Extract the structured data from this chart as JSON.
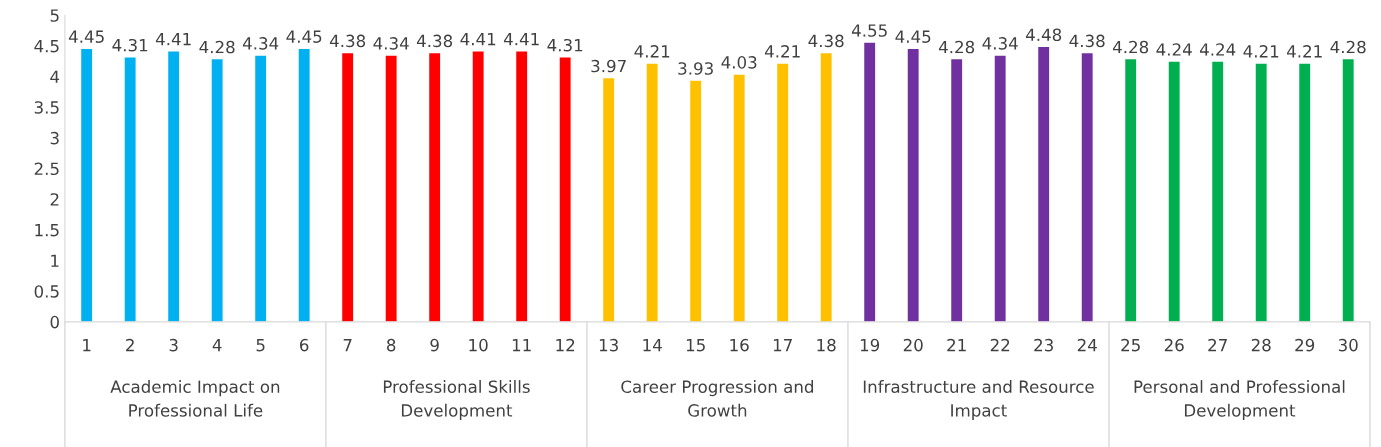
{
  "chart_data": {
    "type": "bar",
    "categories": [
      "1",
      "2",
      "3",
      "4",
      "5",
      "6",
      "7",
      "8",
      "9",
      "10",
      "11",
      "12",
      "13",
      "14",
      "15",
      "16",
      "17",
      "18",
      "19",
      "20",
      "21",
      "22",
      "23",
      "24",
      "25",
      "26",
      "27",
      "28",
      "29",
      "30"
    ],
    "values": [
      4.45,
      4.31,
      4.41,
      4.28,
      4.34,
      4.45,
      4.38,
      4.34,
      4.38,
      4.41,
      4.41,
      4.31,
      3.97,
      4.21,
      3.93,
      4.03,
      4.21,
      4.38,
      4.55,
      4.45,
      4.28,
      4.34,
      4.48,
      4.38,
      4.28,
      4.24,
      4.24,
      4.21,
      4.21,
      4.28
    ],
    "colors": [
      "#00b0f0",
      "#00b0f0",
      "#00b0f0",
      "#00b0f0",
      "#00b0f0",
      "#00b0f0",
      "#ff0000",
      "#ff0000",
      "#ff0000",
      "#ff0000",
      "#ff0000",
      "#ff0000",
      "#ffc000",
      "#ffc000",
      "#ffc000",
      "#ffc000",
      "#ffc000",
      "#ffc000",
      "#7030a0",
      "#7030a0",
      "#7030a0",
      "#7030a0",
      "#7030a0",
      "#7030a0",
      "#00b050",
      "#00b050",
      "#00b050",
      "#00b050",
      "#00b050",
      "#00b050"
    ],
    "annotations": [
      "Academic Impact on Professional Life",
      "Professional Skills Development",
      "Career Progression and Growth",
      "Infrastructure and Resource Impact",
      "Personal and Professional Development"
    ],
    "ylim": [
      0,
      5
    ],
    "yticks": [
      0,
      0.5,
      1,
      1.5,
      2,
      2.5,
      3,
      3.5,
      4,
      4.5,
      5
    ],
    "data_labels": true,
    "grid": false
  }
}
